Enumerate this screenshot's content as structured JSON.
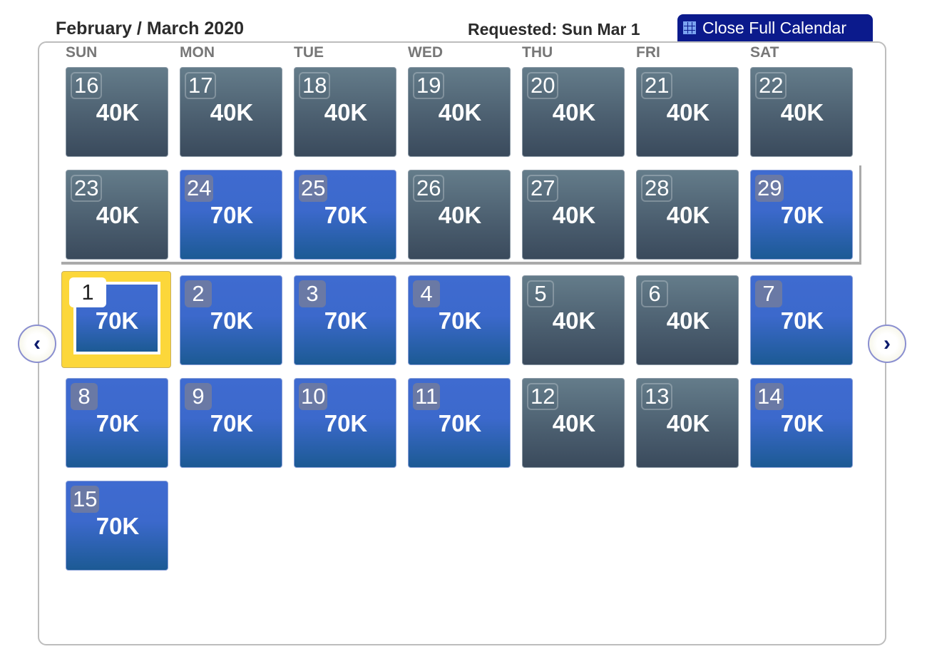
{
  "header": {
    "title": "February / March 2020",
    "requested": "Requested: Sun Mar 1",
    "close_button": "Close Full Calendar",
    "close_button_icon": "calendar-grid-icon"
  },
  "days_of_week": [
    "SUN",
    "MON",
    "TUE",
    "WED",
    "THU",
    "FRI",
    "SAT"
  ],
  "colors": {
    "low_price": "#4a5d6e",
    "high_price": "#3c69cc",
    "selected": "#fcd73a",
    "button": "#0b1a8c"
  },
  "selected_day": "1",
  "weeks": [
    [
      {
        "day": "16",
        "price": "40K"
      },
      {
        "day": "17",
        "price": "40K"
      },
      {
        "day": "18",
        "price": "40K"
      },
      {
        "day": "19",
        "price": "40K"
      },
      {
        "day": "20",
        "price": "40K"
      },
      {
        "day": "21",
        "price": "40K"
      },
      {
        "day": "22",
        "price": "40K"
      }
    ],
    [
      {
        "day": "23",
        "price": "40K"
      },
      {
        "day": "24",
        "price": "70K"
      },
      {
        "day": "25",
        "price": "70K"
      },
      {
        "day": "26",
        "price": "40K"
      },
      {
        "day": "27",
        "price": "40K"
      },
      {
        "day": "28",
        "price": "40K"
      },
      {
        "day": "29",
        "price": "70K"
      }
    ],
    [
      {
        "day": "1",
        "price": "70K"
      },
      {
        "day": "2",
        "price": "70K"
      },
      {
        "day": "3",
        "price": "70K"
      },
      {
        "day": "4",
        "price": "70K"
      },
      {
        "day": "5",
        "price": "40K"
      },
      {
        "day": "6",
        "price": "40K"
      },
      {
        "day": "7",
        "price": "70K"
      }
    ],
    [
      {
        "day": "8",
        "price": "70K"
      },
      {
        "day": "9",
        "price": "70K"
      },
      {
        "day": "10",
        "price": "70K"
      },
      {
        "day": "11",
        "price": "70K"
      },
      {
        "day": "12",
        "price": "40K"
      },
      {
        "day": "13",
        "price": "40K"
      },
      {
        "day": "14",
        "price": "70K"
      }
    ],
    [
      {
        "day": "15",
        "price": "70K"
      }
    ]
  ],
  "nav": {
    "prev_icon": "chevron-left-icon",
    "next_icon": "chevron-right-icon"
  }
}
